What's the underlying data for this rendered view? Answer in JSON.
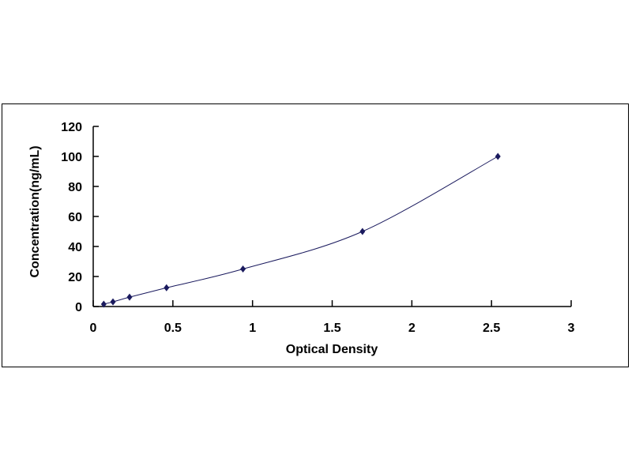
{
  "chart_data": {
    "type": "scatter",
    "title": "",
    "xlabel": "Optical Density",
    "ylabel": "Concentration(ng/mL)",
    "xlim": [
      0,
      3
    ],
    "ylim": [
      0,
      120
    ],
    "xticks": [
      "0",
      "0.5",
      "1",
      "1.5",
      "2",
      "2.5",
      "3"
    ],
    "yticks": [
      "0",
      "20",
      "40",
      "60",
      "80",
      "100",
      "120"
    ],
    "grid": false,
    "trendline": "smooth curve",
    "marker_color": "#1a1a5e",
    "line_color": "#1a1a5e",
    "x": [
      0.066,
      0.124,
      0.228,
      0.46,
      0.94,
      1.69,
      2.54
    ],
    "y": [
      1.56,
      3.12,
      6.25,
      12.5,
      25,
      50,
      100
    ]
  }
}
